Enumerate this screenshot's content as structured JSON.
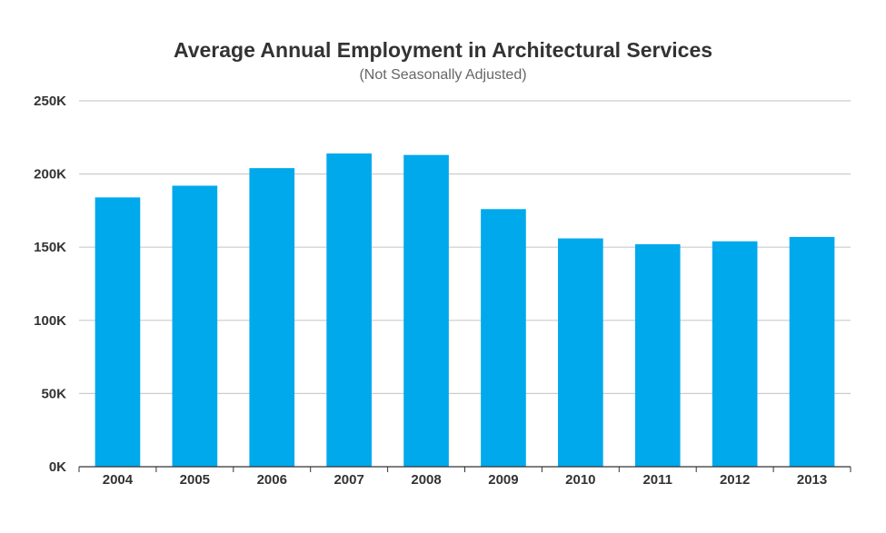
{
  "chart_data": {
    "type": "bar",
    "title": "Average Annual Employment in Architectural Services",
    "subtitle": "(Not Seasonally Adjusted)",
    "xlabel": "",
    "ylabel": "",
    "categories": [
      "2004",
      "2005",
      "2006",
      "2007",
      "2008",
      "2009",
      "2010",
      "2011",
      "2012",
      "2013"
    ],
    "values": [
      184000,
      192000,
      204000,
      214000,
      213000,
      176000,
      156000,
      152000,
      154000,
      157000
    ],
    "ylim": [
      0,
      250000
    ],
    "y_ticks": [
      {
        "value": 0,
        "label": "0K"
      },
      {
        "value": 50000,
        "label": "50K"
      },
      {
        "value": 100000,
        "label": "100K"
      },
      {
        "value": 150000,
        "label": "150K"
      },
      {
        "value": 200000,
        "label": "200K"
      },
      {
        "value": 250000,
        "label": "250K"
      }
    ],
    "grid": true,
    "legend": "none",
    "colors": {
      "bar": "#00a9ec",
      "grid": "#cccccc",
      "axis": "#333333"
    }
  }
}
